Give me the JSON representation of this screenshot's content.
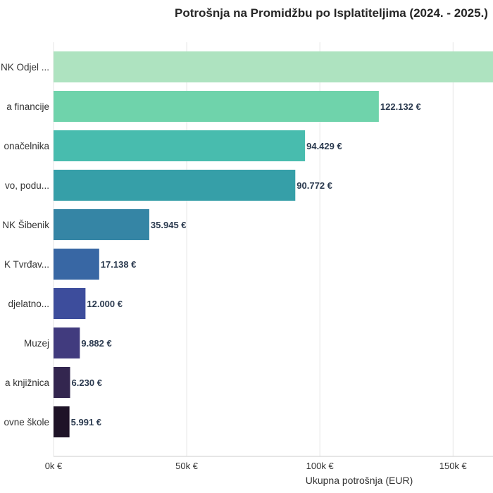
{
  "chart_data": {
    "type": "bar",
    "orientation": "horizontal",
    "title": "Potrošnja na Promidžbu po Isplatiteljima (2024. - 2025.)",
    "xlabel": "Ukupna potrošnja (EUR)",
    "ylabel": "",
    "xlim": [
      0,
      165000
    ],
    "grid": true,
    "xticks": [
      {
        "value": 0,
        "label": "0k €"
      },
      {
        "value": 50000,
        "label": "50k €"
      },
      {
        "value": 100000,
        "label": "100k €"
      },
      {
        "value": 150000,
        "label": "150k €"
      }
    ],
    "categories": [
      "NK Odjel ...",
      "a financije",
      "onačelnika",
      "vo, podu...",
      "NK Šibenik",
      "K Tvrđav...",
      "djelatno...",
      "Muzej",
      "a knjižnica",
      "ovne škole"
    ],
    "values": [
      165000,
      122132,
      94429,
      90772,
      35945,
      17138,
      12000,
      9882,
      6230,
      5991
    ],
    "value_labels": [
      "",
      "122.132 €",
      "94.429 €",
      "90.772 €",
      "35.945 €",
      "17.138 €",
      "12.000 €",
      "9.882 €",
      "6.230 €",
      "5.991 €"
    ],
    "colors": [
      "#aee3c0",
      "#6fd3ab",
      "#48bcae",
      "#369fa8",
      "#3585a5",
      "#3867a4",
      "#3d4d9c",
      "#413b7e",
      "#33264f",
      "#1e1327"
    ],
    "label_color": "#2b3a4f"
  }
}
